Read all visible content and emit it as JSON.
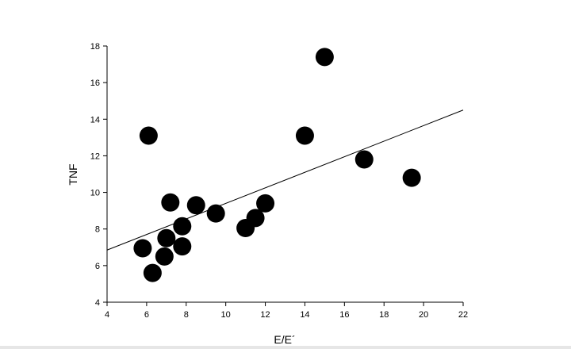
{
  "chart_data": {
    "type": "scatter",
    "title": "",
    "xlabel": "E/E´",
    "ylabel": "TNF",
    "xlim": [
      4,
      22
    ],
    "ylim": [
      4,
      18
    ],
    "xticks": [
      4,
      6,
      8,
      10,
      12,
      14,
      16,
      18,
      20,
      22
    ],
    "yticks": [
      4,
      6,
      8,
      10,
      12,
      14,
      16,
      18
    ],
    "grid": false,
    "legend": "none",
    "marker_color": "#000000",
    "points": [
      {
        "x": 5.8,
        "y": 6.95
      },
      {
        "x": 6.1,
        "y": 13.1
      },
      {
        "x": 6.3,
        "y": 5.6
      },
      {
        "x": 6.9,
        "y": 6.5
      },
      {
        "x": 7.0,
        "y": 7.5
      },
      {
        "x": 7.2,
        "y": 9.45
      },
      {
        "x": 7.8,
        "y": 7.05
      },
      {
        "x": 7.8,
        "y": 8.15
      },
      {
        "x": 8.5,
        "y": 9.3
      },
      {
        "x": 9.5,
        "y": 8.85
      },
      {
        "x": 11.0,
        "y": 8.05
      },
      {
        "x": 11.5,
        "y": 8.6
      },
      {
        "x": 12.0,
        "y": 9.4
      },
      {
        "x": 14.0,
        "y": 13.1
      },
      {
        "x": 15.0,
        "y": 17.4
      },
      {
        "x": 17.0,
        "y": 11.8
      },
      {
        "x": 19.4,
        "y": 10.8
      }
    ],
    "regression_line": {
      "x": [
        4,
        22
      ],
      "y": [
        6.85,
        14.5
      ]
    }
  }
}
